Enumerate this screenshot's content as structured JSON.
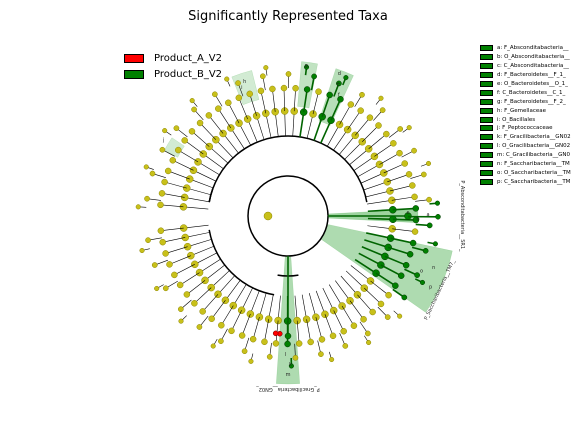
{
  "title": "Significantly Represented Taxa",
  "legend": [
    {
      "label": "Product_A_V2",
      "color": "#ff0000"
    },
    {
      "label": "Product_B_V2",
      "color": "#008000"
    }
  ],
  "colors": {
    "node_default": "#c8c01a",
    "node_default_stroke": "#8a8400",
    "enriched_B": "#008000",
    "enriched_A": "#ff0000",
    "shade_B": "#4caf50"
  },
  "clade_key": [
    "a: F_Absconditabacteria__",
    "b: O_Absconditabacteria__",
    "c: C_Absconditabacteria__",
    "d: F_Bacteroidetes__F_1_",
    "e: O_Bacteroidetes__O_1_",
    "f: C_Bacteroidetes__C_1_",
    "g: F_Bacteroidetes__F_2_",
    "h: F_Gemellaceae",
    "i: O_Bacillales",
    "j: F_Peptococcaceae",
    "k: F_Gracilibacteria__GN02",
    "l: O_Gracilibacteria__GN02",
    "m: C_Gracilibacteria__GN0",
    "n: F_Saccharibacteria__TM",
    "o: O_Saccharibacteria__TM",
    "p: C_Saccharibacteria__TM"
  ],
  "outer_labels": [
    "P_Absconditabacteria__SR1_",
    "P_Saccharibacteria__TM7_",
    "P_Gracilibacteria__GN02_"
  ],
  "clade_letters": [
    "a",
    "b",
    "c",
    "d",
    "e",
    "f",
    "g",
    "h",
    "i",
    "j",
    "k",
    "l",
    "m",
    "n",
    "o",
    "p"
  ]
}
